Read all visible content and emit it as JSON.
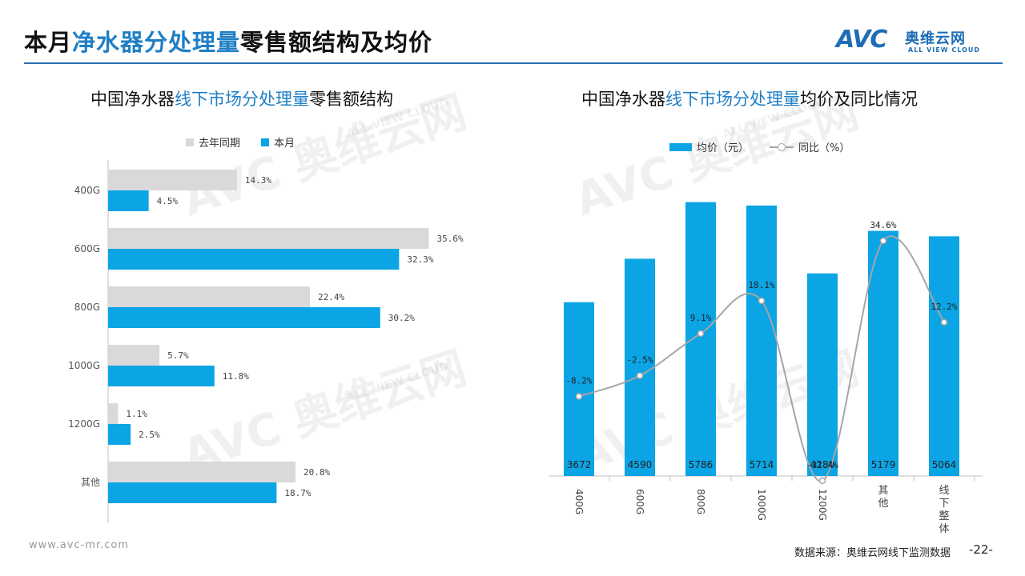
{
  "header": {
    "title_prefix": "本月",
    "title_highlight": "净水器分处理量",
    "title_suffix": "零售额结构及均价",
    "logo_mark": "AVC",
    "logo_cn": "奥维云网",
    "logo_en": "ALL VIEW CLOUD"
  },
  "left_panel": {
    "title_prefix": "中国净水器",
    "title_highlight": "线下市场分处理量",
    "title_suffix": "零售额结构",
    "legend": [
      "去年同期",
      "本月"
    ]
  },
  "right_panel": {
    "title_prefix": "中国净水器",
    "title_highlight": "线下市场分处理量",
    "title_suffix": "均价及同比情况",
    "legend": [
      "均价（元）",
      "同比（%）"
    ]
  },
  "watermark": {
    "cn": "奥维云网",
    "en": "ALL VIEW CLOUD",
    "mark": "AVC"
  },
  "footer": {
    "url": "www.avc-mr.com",
    "source": "数据来源：奥维云网线下监测数据",
    "page": "-22-"
  },
  "colors": {
    "blue": "#0ba4e4",
    "gray": "#d9d9d9",
    "line": "#a6a6a6",
    "accent": "#1f7fc4"
  },
  "chart_data": [
    {
      "type": "bar",
      "orientation": "horizontal",
      "categories": [
        "400G",
        "600G",
        "800G",
        "1000G",
        "1200G",
        "其他"
      ],
      "series": [
        {
          "name": "去年同期",
          "values": [
            14.3,
            35.6,
            22.4,
            5.7,
            1.1,
            20.8
          ],
          "labels": [
            "14.3%",
            "35.6%",
            "22.4%",
            "5.7%",
            "1.1%",
            "20.8%"
          ]
        },
        {
          "name": "本月",
          "values": [
            4.5,
            32.3,
            30.2,
            11.8,
            2.5,
            18.7
          ],
          "labels": [
            "4.5%",
            "32.3%",
            "30.2%",
            "11.8%",
            "2.5%",
            "18.7%"
          ]
        }
      ],
      "xlim": [
        0,
        40
      ],
      "grid": false,
      "legend": "top"
    },
    {
      "type": "bar+line",
      "categories": [
        "400G",
        "600G",
        "800G",
        "1000G",
        "1200G",
        "其他",
        "线下整体"
      ],
      "bars": {
        "name": "均价（元）",
        "values": [
          3672,
          4590,
          5786,
          5714,
          4280,
          5179,
          5064
        ],
        "labels": [
          "3672",
          "4590",
          "5786",
          "5714",
          "4280",
          "5179",
          "5064"
        ],
        "ylim": [
          0,
          6000
        ]
      },
      "line": {
        "name": "同比（%）",
        "values": [
          -8.2,
          -2.5,
          9.1,
          18.1,
          -31.4,
          34.6,
          12.2
        ],
        "labels": [
          "-8.2%",
          "-2.5%",
          "9.1%",
          "18.1%",
          "-31.4%",
          "34.6%",
          "12.2%"
        ],
        "ylim": [
          -40,
          50
        ]
      },
      "grid": false,
      "legend": "top"
    }
  ]
}
